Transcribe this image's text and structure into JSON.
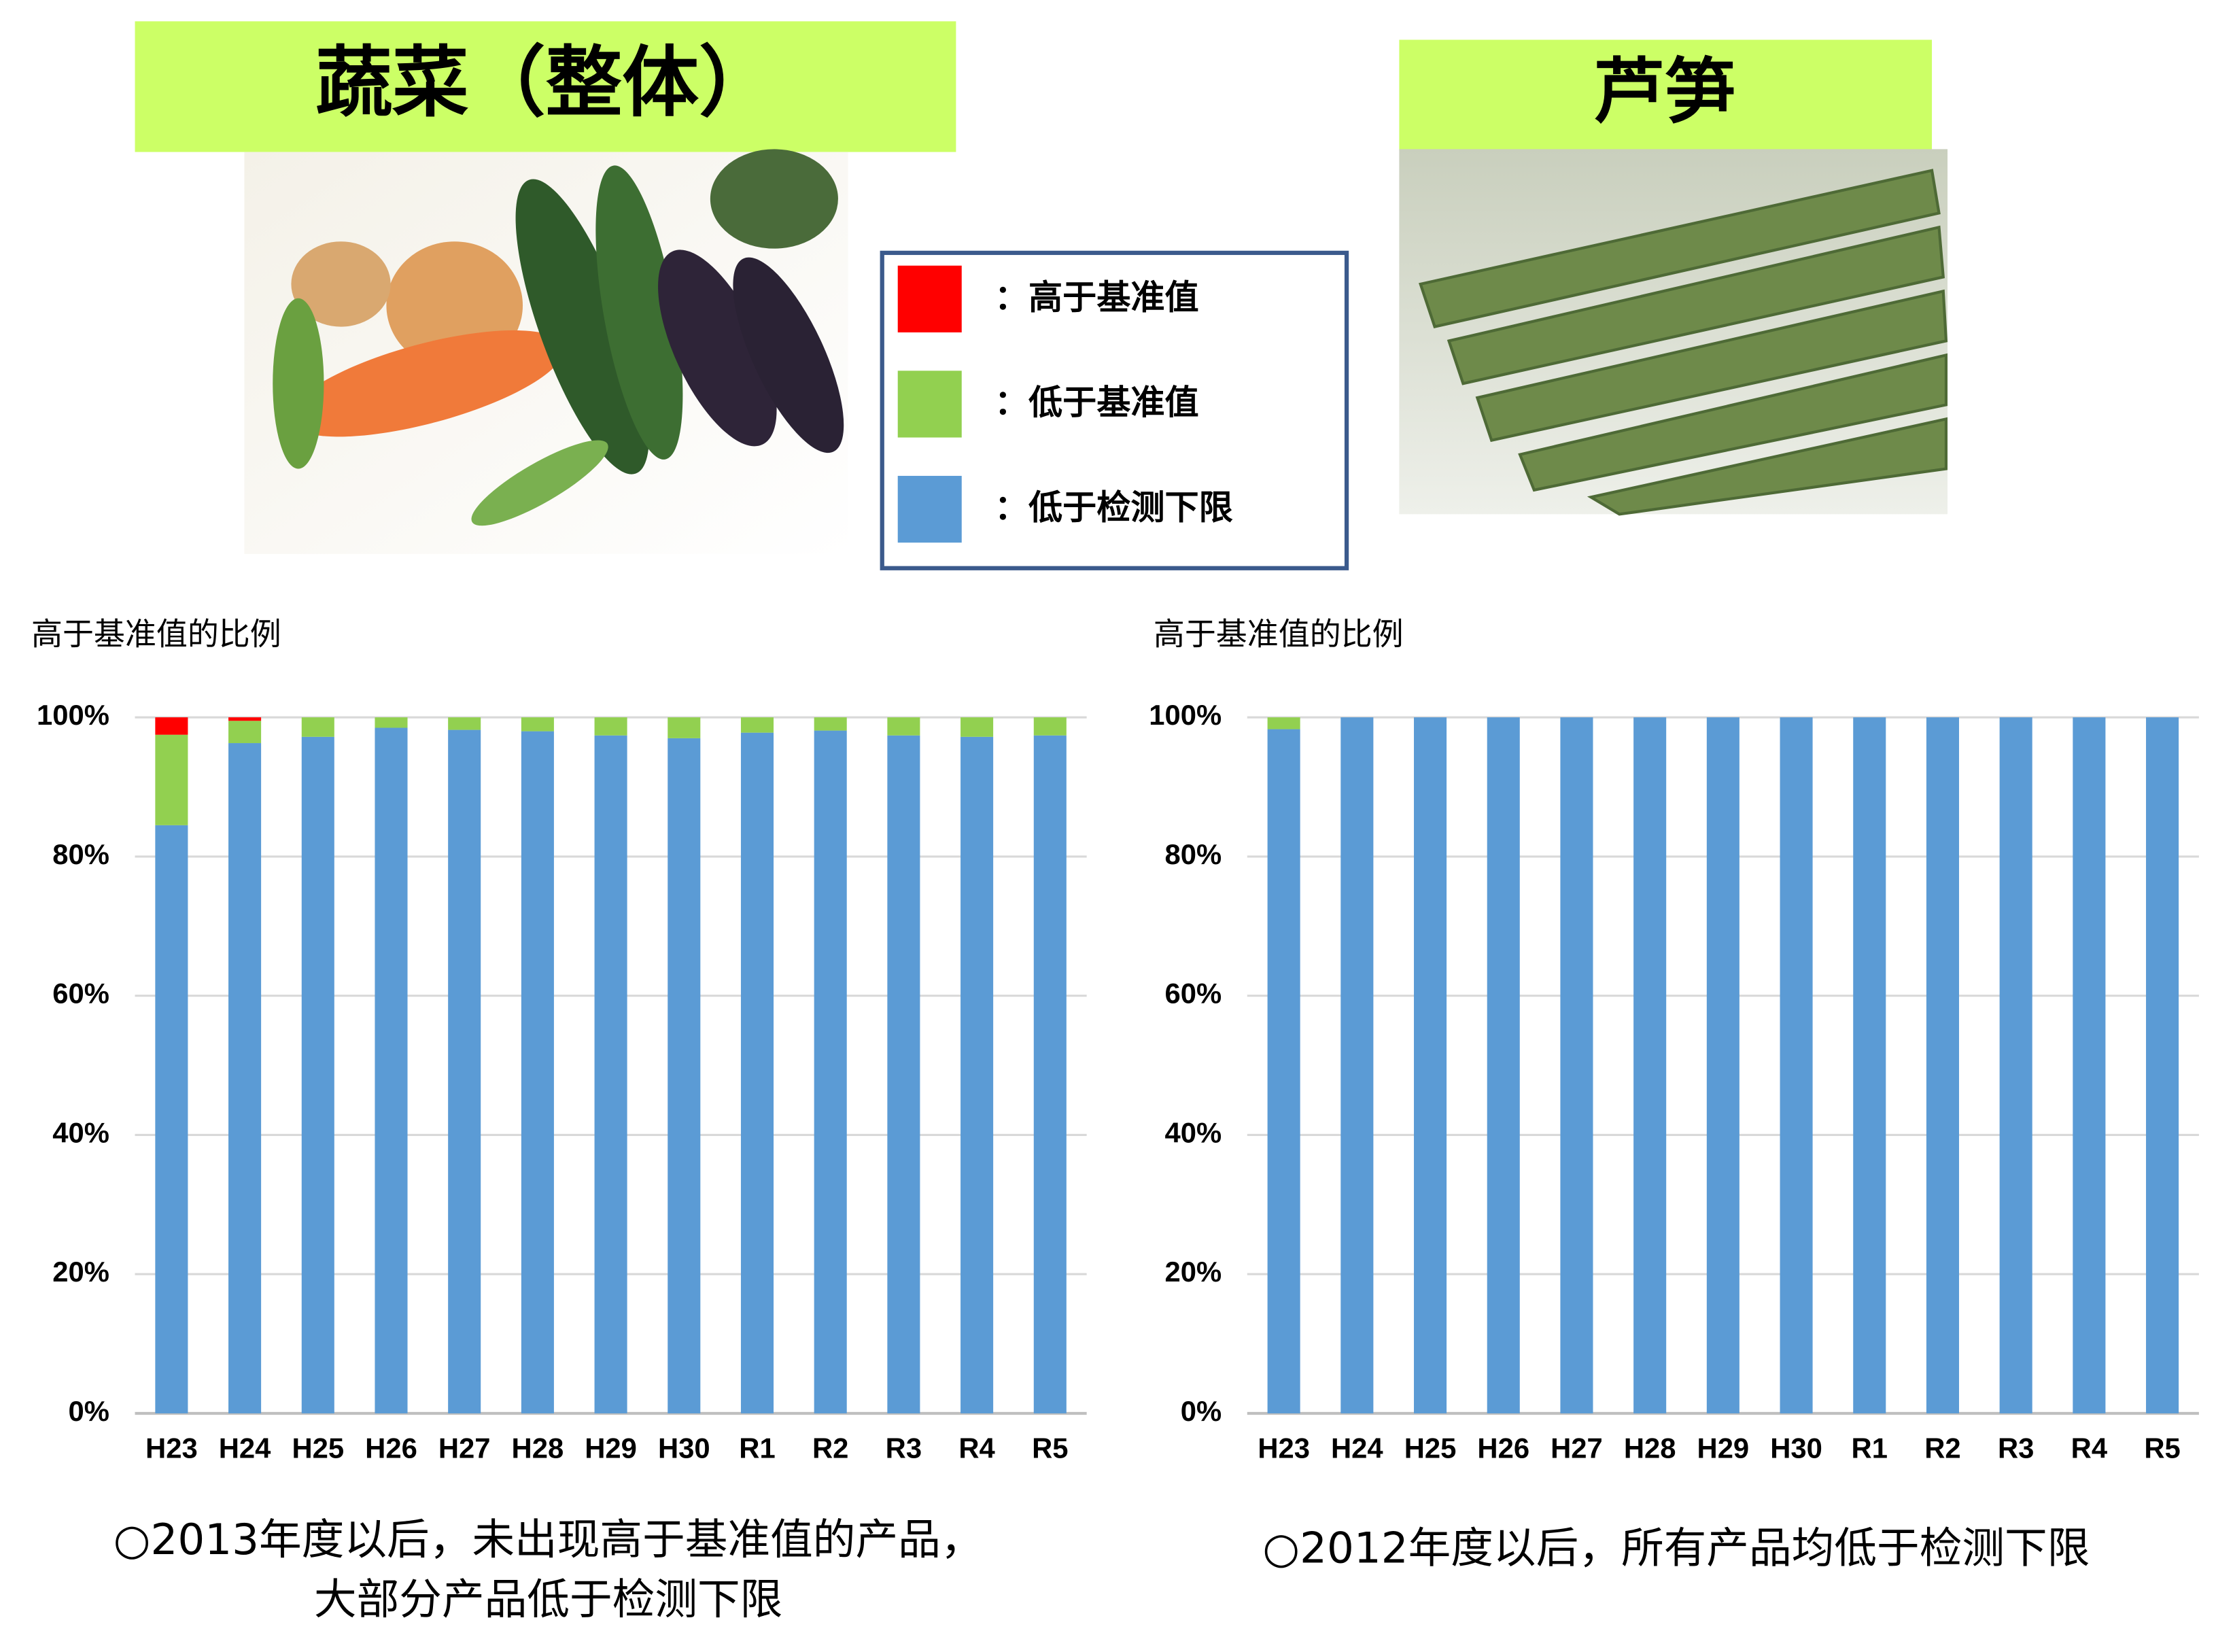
{
  "chart_data": [
    {
      "type": "stacked_bar",
      "title": "蔬菜（整体）",
      "ylabel": "高于基准值的比例",
      "caption": [
        "○2013年度以后，未出现高于基准值的产品，",
        "大部分产品低于检测下限"
      ],
      "categories": [
        "H23",
        "H24",
        "H25",
        "H26",
        "H27",
        "H28",
        "H29",
        "H30",
        "R1",
        "R2",
        "R3",
        "R4",
        "R5"
      ],
      "series": [
        {
          "name": "：低于检测下限",
          "color": "#5b9bd5",
          "values": [
            84.5,
            96.3,
            97.2,
            98.5,
            98.2,
            98.0,
            97.4,
            97.0,
            97.8,
            98.1,
            97.4,
            97.2,
            97.4
          ]
        },
        {
          "name": "：低于基准值",
          "color": "#92d050",
          "values": [
            13,
            3.2,
            2.8,
            1.5,
            1.8,
            2.0,
            2.6,
            3.0,
            2.2,
            1.9,
            2.6,
            2.8,
            2.6
          ]
        },
        {
          "name": "：高于基准值",
          "color": "#ff0000",
          "values": [
            2.5,
            0.5,
            0,
            0,
            0,
            0,
            0,
            0,
            0,
            0,
            0,
            0,
            0
          ]
        }
      ],
      "ylim": [
        0,
        100
      ],
      "yticks": [
        {
          "value": 0,
          "label": "0%"
        },
        {
          "value": 20,
          "label": "20%"
        },
        {
          "value": 40,
          "label": "40%"
        },
        {
          "value": 60,
          "label": "60%"
        },
        {
          "value": 80,
          "label": "80%"
        },
        {
          "value": 100,
          "label": "100%"
        }
      ],
      "grid": true
    },
    {
      "type": "stacked_bar",
      "title": "芦笋",
      "ylabel": "高于基准值的比例",
      "caption": [
        "○2012年度以后，所有产品均低于检测下限"
      ],
      "categories": [
        "H23",
        "H24",
        "H25",
        "H26",
        "H27",
        "H28",
        "H29",
        "H30",
        "R1",
        "R2",
        "R3",
        "R4",
        "R5"
      ],
      "series": [
        {
          "color": "#5b9bd5",
          "values": [
            98.3,
            100,
            100,
            100,
            100,
            100,
            100,
            100,
            100,
            100,
            100,
            100,
            100
          ]
        },
        {
          "color": "#92d050",
          "values": [
            1.7,
            0,
            0,
            0,
            0,
            0,
            0,
            0,
            0,
            0,
            0,
            0,
            0
          ]
        },
        {
          "color": "#ff0000",
          "values": [
            0,
            0,
            0,
            0,
            0,
            0,
            0,
            0,
            0,
            0,
            0,
            0,
            0
          ]
        }
      ],
      "ylim": [
        0,
        100
      ],
      "yticks": [
        {
          "value": 0,
          "label": "0%"
        },
        {
          "value": 20,
          "label": "20%"
        },
        {
          "value": 40,
          "label": "40%"
        },
        {
          "value": 60,
          "label": "60%"
        },
        {
          "value": 80,
          "label": "80%"
        },
        {
          "value": 100,
          "label": "100%"
        }
      ],
      "grid": true
    }
  ]
}
